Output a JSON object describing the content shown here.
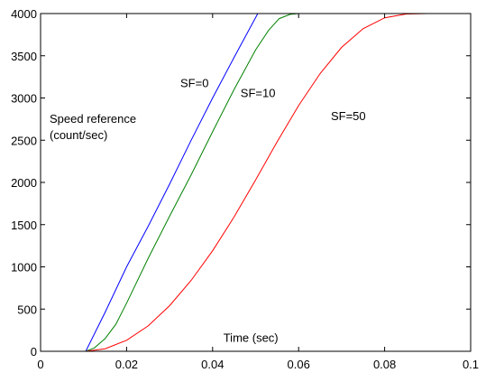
{
  "chart_data": {
    "type": "line",
    "title": "",
    "xlabel": "Time (sec)",
    "ylabel": "Speed reference (count/sec)",
    "ylabel_lines": [
      "Speed reference",
      "(count/sec)"
    ],
    "xlim": [
      0,
      0.1
    ],
    "ylim": [
      0,
      4000
    ],
    "xticks": [
      0,
      0.02,
      0.04,
      0.06,
      0.08,
      0.1
    ],
    "xtick_labels": [
      "0",
      "0.02",
      "0.04",
      "0.06",
      "0.08",
      "0.1"
    ],
    "yticks": [
      0,
      500,
      1000,
      1500,
      2000,
      2500,
      3000,
      3500,
      4000
    ],
    "ytick_labels": [
      "0",
      "500",
      "1000",
      "1500",
      "2000",
      "2500",
      "3000",
      "3500",
      "4000"
    ],
    "grid": false,
    "series": [
      {
        "name": "SF=0",
        "color": "#0000ff",
        "x": [
          0,
          0.0105,
          0.015,
          0.02,
          0.025,
          0.03,
          0.035,
          0.04,
          0.045,
          0.0505,
          0.1
        ],
        "y": [
          0,
          0,
          460,
          1000,
          1480,
          1980,
          2500,
          3000,
          3480,
          4000,
          4000
        ]
      },
      {
        "name": "SF=10",
        "color": "#008000",
        "x": [
          0,
          0.0105,
          0.0125,
          0.015,
          0.0175,
          0.02,
          0.025,
          0.03,
          0.035,
          0.04,
          0.045,
          0.05,
          0.053,
          0.0555,
          0.058,
          0.06,
          0.1
        ],
        "y": [
          0,
          0,
          40,
          150,
          320,
          570,
          1100,
          1600,
          2090,
          2600,
          3100,
          3570,
          3800,
          3940,
          3990,
          4000,
          4000
        ]
      },
      {
        "name": "SF=50",
        "color": "#ff0000",
        "x": [
          0,
          0.0105,
          0.015,
          0.02,
          0.025,
          0.03,
          0.035,
          0.04,
          0.045,
          0.05,
          0.055,
          0.06,
          0.065,
          0.07,
          0.075,
          0.08,
          0.085,
          0.09,
          0.095,
          0.1
        ],
        "y": [
          0,
          0,
          30,
          130,
          300,
          540,
          840,
          1190,
          1590,
          2030,
          2480,
          2910,
          3290,
          3600,
          3820,
          3950,
          3995,
          4000,
          4000,
          4000
        ]
      }
    ],
    "annotations": [
      {
        "text": "SF=0",
        "x": 0.0325,
        "y": 3130
      },
      {
        "text": "SF=10",
        "x": 0.0465,
        "y": 3010
      },
      {
        "text": "SF=50",
        "x": 0.0675,
        "y": 2740
      },
      {
        "text": "Time (sec)",
        "x": 0.0425,
        "y": 110
      }
    ]
  }
}
